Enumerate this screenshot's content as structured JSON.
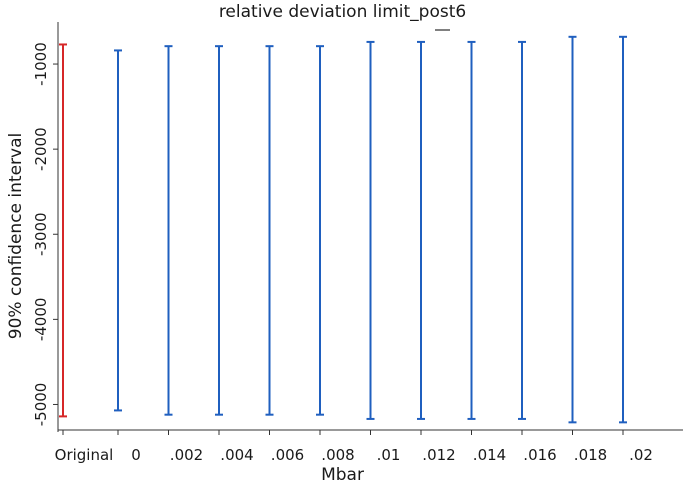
{
  "chart_data": {
    "type": "errorbar",
    "title": "relative deviation limit_post6",
    "xlabel": "Mbar",
    "ylabel": "90% confidence interval",
    "x_tick_labels": [
      "Original",
      "0",
      ".002",
      ".004",
      ".006",
      ".008",
      ".01",
      ".012",
      ".014",
      ".016",
      ".018",
      ".02"
    ],
    "y_ticks": [
      -1000,
      -2000,
      -3000,
      -4000,
      -5000
    ],
    "y_tick_labels": [
      "-1000",
      "-2000",
      "-3000",
      "-4000",
      "-5000"
    ],
    "ylim": [
      -5300,
      -600
    ],
    "grid": false,
    "colors": {
      "original": "#d62728",
      "series": "#1f5fbf",
      "axis": "#333333"
    },
    "series": [
      {
        "name": "Original",
        "points": [
          {
            "x": "Original",
            "lower": -5140,
            "upper": -770
          }
        ]
      },
      {
        "name": "Mbar",
        "points": [
          {
            "x": 0.0,
            "lower": -5070,
            "upper": -840
          },
          {
            "x": 0.002,
            "lower": -5120,
            "upper": -790
          },
          {
            "x": 0.004,
            "lower": -5120,
            "upper": -790
          },
          {
            "x": 0.006,
            "lower": -5120,
            "upper": -790
          },
          {
            "x": 0.008,
            "lower": -5120,
            "upper": -790
          },
          {
            "x": 0.01,
            "lower": -5170,
            "upper": -740
          },
          {
            "x": 0.012,
            "lower": -5170,
            "upper": -740
          },
          {
            "x": 0.014,
            "lower": -5170,
            "upper": -740
          },
          {
            "x": 0.016,
            "lower": -5170,
            "upper": -740
          },
          {
            "x": 0.018,
            "lower": -5210,
            "upper": -680
          },
          {
            "x": 0.02,
            "lower": -5210,
            "upper": -680
          }
        ]
      }
    ]
  }
}
